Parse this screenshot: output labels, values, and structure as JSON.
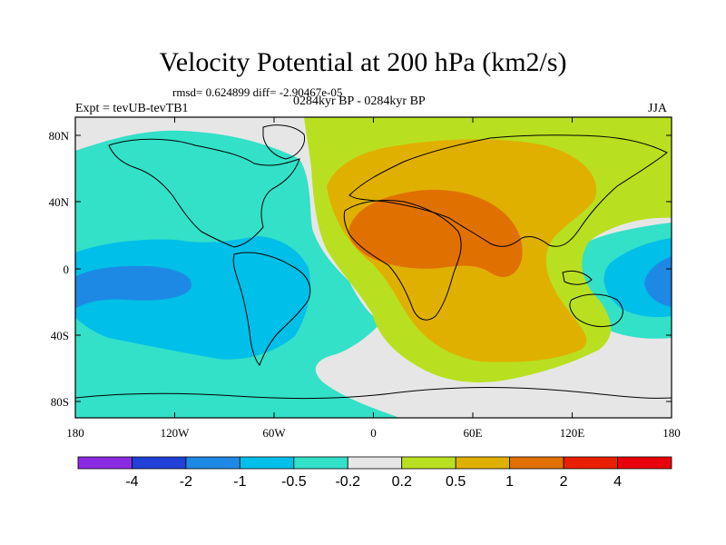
{
  "title": "Velocity Potential at 200 hPa (km2/s)",
  "stats": "rmsd= 0.624899  diff= -2.90467e-05",
  "expt": "Expt = tevUB-tevTB1",
  "period": "0284kyr BP - 0284kyr BP",
  "season": "JJA",
  "lat_ticks": [
    "80N",
    "40N",
    "0",
    "40S",
    "80S"
  ],
  "lon_ticks": [
    "180",
    "120W",
    "60W",
    "0",
    "60E",
    "120E",
    "180"
  ],
  "colorbar": {
    "labels": [
      "-4",
      "-2",
      "-1",
      "-0.5",
      "-0.2",
      "0.2",
      "0.5",
      "1",
      "2",
      "4"
    ],
    "colors": [
      "#8a2be2",
      "#2040d8",
      "#1e88e5",
      "#00bfe8",
      "#33e0c8",
      "#e6e6e6",
      "#b8e020",
      "#e0b000",
      "#e07000",
      "#e82000"
    ]
  },
  "map_colors": {
    "ocean_neutral": "#e6e6e6",
    "teal": "#33e0c8",
    "cyan": "#00bfe8",
    "blue": "#1e88e5",
    "lime": "#b8e020",
    "gold": "#e0b000",
    "orange": "#e07000"
  }
}
